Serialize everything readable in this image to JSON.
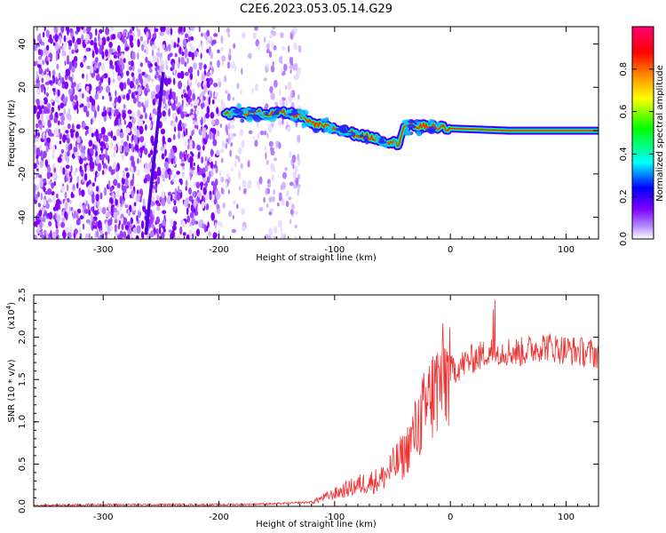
{
  "chart_data": [
    {
      "type": "heatmap",
      "title": "C2E6.2023.053.05.14.G29",
      "xlabel": "Height of straight line (km)",
      "ylabel": "Frequency (Hz)",
      "xlim": [
        -360,
        128
      ],
      "ylim": [
        -50,
        48
      ],
      "xticks": [
        "-300",
        "-200",
        "-100",
        "0",
        "100"
      ],
      "yticks": [
        "-40",
        "-20",
        "0",
        "20",
        "40"
      ],
      "colorbar": {
        "label": "Normalized spectral amplitude",
        "range": [
          0,
          1
        ],
        "ticks": [
          "0.0",
          "0.2",
          "0.4",
          "0.6",
          "0.8"
        ],
        "colors": [
          "#ffffff",
          "#7f00ff",
          "#0000ff",
          "#00ffff",
          "#00ff00",
          "#ffff00",
          "#ff7f00",
          "#ff0000",
          "#ff0077"
        ]
      },
      "ridge": {
        "x": [
          -195,
          -180,
          -160,
          -140,
          -130,
          -120,
          -100,
          -80,
          -60,
          -45,
          -40,
          -30,
          -20,
          0,
          50,
          100,
          128
        ],
        "y": [
          8,
          8,
          8,
          8,
          7,
          3,
          1,
          -2,
          -4,
          -6,
          2,
          2,
          2,
          1,
          0,
          0,
          0
        ]
      },
      "streak": {
        "x": [
          -263,
          -248
        ],
        "y": [
          -48,
          27
        ]
      }
    },
    {
      "type": "line",
      "xlabel": "Height of straight line (km)",
      "ylabel": "SNR (10 * v/v)",
      "ylabel_exponent_prefix": "(x10",
      "ylabel_exponent": "4",
      "ylabel_exponent_suffix": ")",
      "xlim": [
        -360,
        128
      ],
      "ylim": [
        0,
        2.5
      ],
      "xticks": [
        "-300",
        "-200",
        "-100",
        "0",
        "100"
      ],
      "yticks": [
        "0.0",
        "0.5",
        "1.0",
        "1.5",
        "2.0",
        "2.5"
      ],
      "series": [
        {
          "color": "#ee3333",
          "x": [
            -360,
            -300,
            -250,
            -200,
            -150,
            -120,
            -100,
            -80,
            -60,
            -40,
            -30,
            -20,
            -10,
            0,
            20,
            40,
            60,
            80,
            100,
            128
          ],
          "y": [
            0.01,
            0.02,
            0.02,
            0.02,
            0.03,
            0.05,
            0.15,
            0.25,
            0.32,
            0.6,
            0.9,
            1.2,
            1.45,
            1.6,
            1.75,
            1.85,
            1.82,
            1.9,
            1.85,
            1.8
          ]
        }
      ]
    }
  ]
}
